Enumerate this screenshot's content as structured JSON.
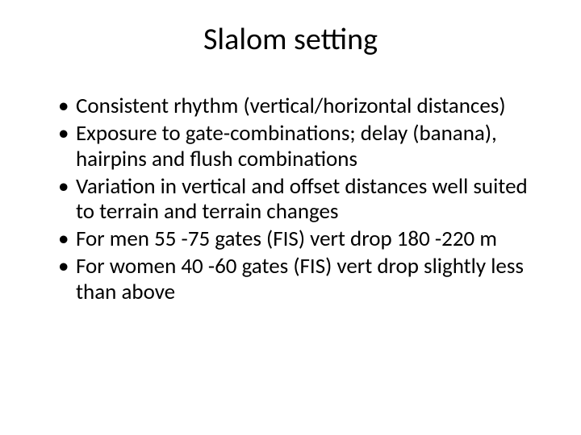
{
  "slide": {
    "title": "Slalom setting",
    "title_fontsize": 38,
    "title_color": "#000000",
    "body_fontsize": 27,
    "body_color": "#000000",
    "background_color": "#ffffff",
    "bullets": [
      "Consistent rhythm (vertical/horizontal distances)",
      "Exposure to gate-combinations; delay (banana), hairpins and flush combinations",
      "Variation in vertical and offset distances well suited to terrain and terrain changes",
      "For men 55 -75 gates (FIS) vert drop 180 -220 m",
      "For women 40 -60 gates (FIS) vert drop slightly less than above"
    ]
  }
}
